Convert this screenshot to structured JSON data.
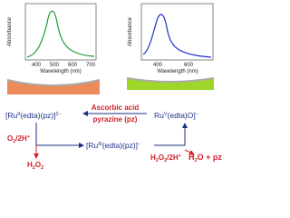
{
  "left_spectrum": {
    "y_label": "Absorbance",
    "x_label": "Wavelength (nm)",
    "x_ticks": [
      400,
      500,
      600,
      700
    ]
  },
  "right_spectrum": {
    "y_label": "Absorbance",
    "x_label": "Wavelength (nm)",
    "x_ticks": [
      400,
      600
    ]
  },
  "scheme": {
    "ru2": {
      "prefix": "[Ru",
      "oxidation_state": "II",
      "ligands": "(edta)(pz)]",
      "charge": "2−"
    },
    "ru5": {
      "prefix": "Ru",
      "oxidation_state": "V",
      "ligands": "(edta)O]",
      "charge": "−"
    },
    "ru3": {
      "prefix": "[Ru",
      "oxidation_state": "III",
      "ligands": "(edta)(pz)]",
      "charge": "−"
    },
    "reagent_top": "Ascorbic acid",
    "reagent_bottom": "pyrazine (pz)",
    "oxidant_left": {
      "a": "O",
      "sub": "2",
      "b": "/2H",
      "sup": "+"
    },
    "product_left": {
      "a": "H",
      "sub1": "2",
      "b": "O",
      "sub2": "2"
    },
    "oxidant_right": {
      "a": "H",
      "sub1": "2",
      "b": "O",
      "sub2": "2",
      "c": "/2H",
      "sup": "+"
    },
    "product_right": {
      "a": "H",
      "sub": "2",
      "b": "O + pz"
    }
  }
}
